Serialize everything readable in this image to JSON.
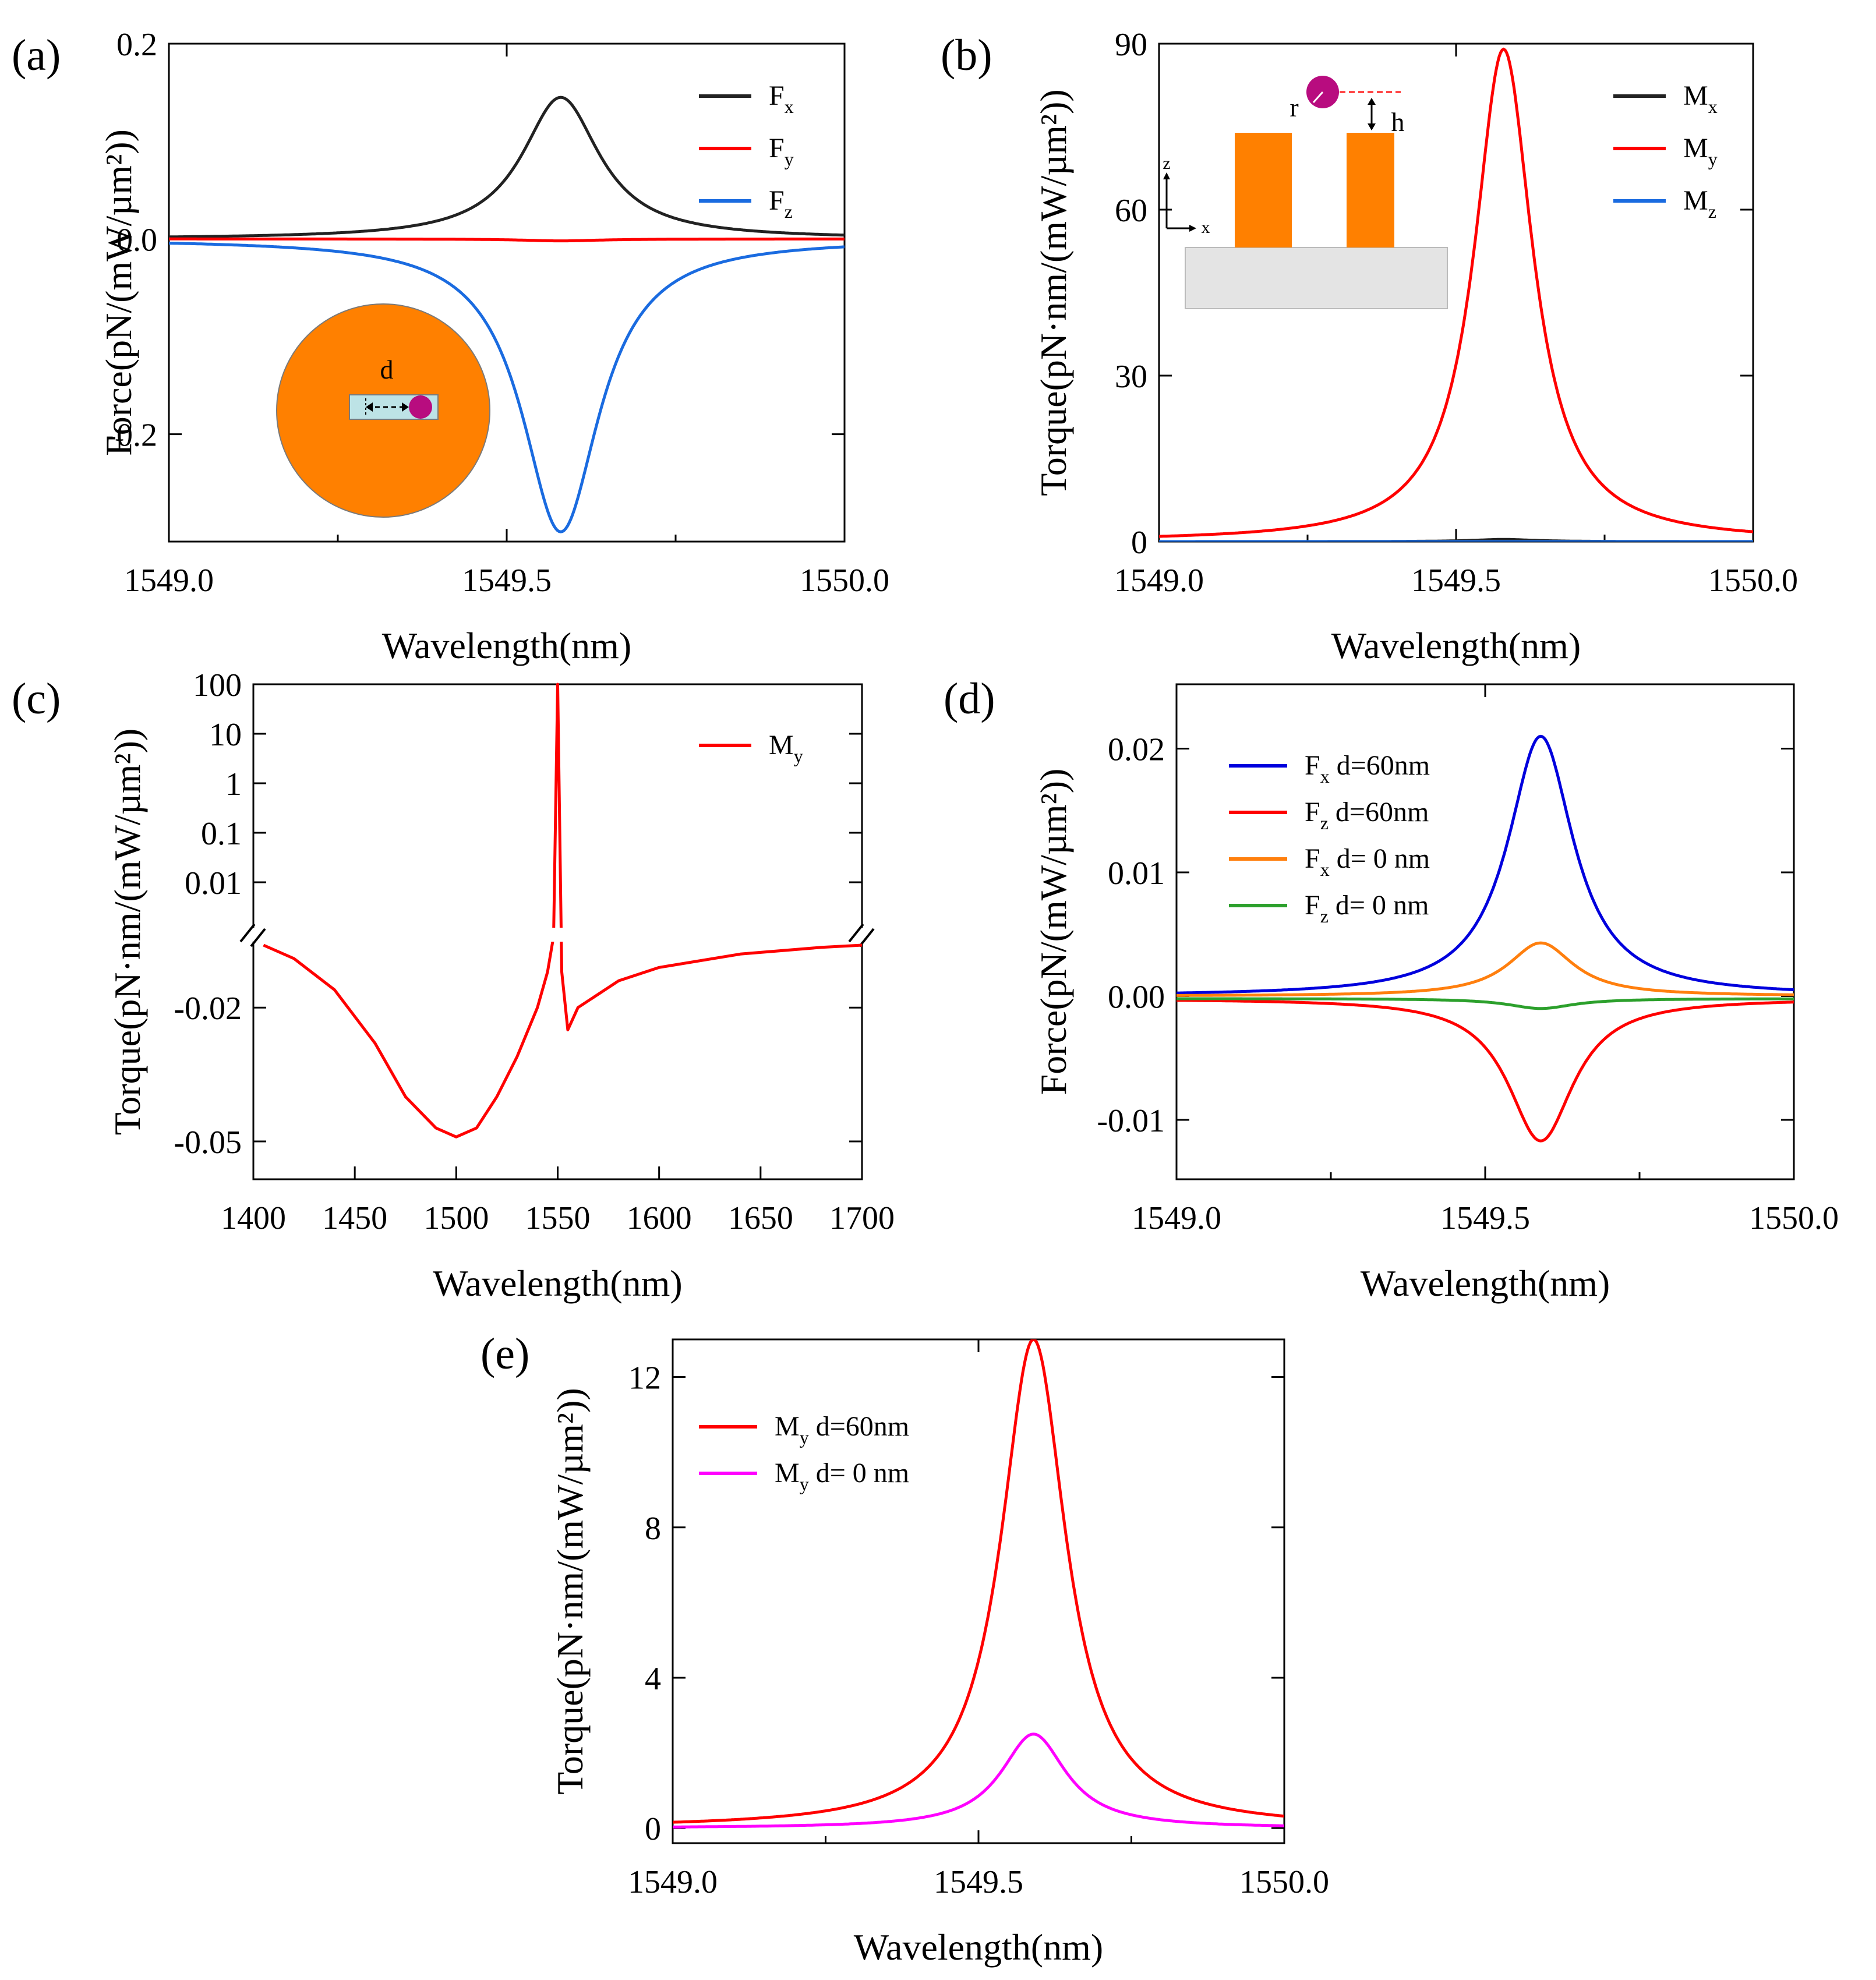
{
  "figure": {
    "panel_letters": [
      "(a)",
      "(b)",
      "(c)",
      "(d)",
      "(e)"
    ]
  },
  "chart_data": [
    {
      "id": "a",
      "type": "line",
      "panel_label": "(a)",
      "xlabel": "Wavelength(nm)",
      "ylabel": "Force(pN/(mW/µm²))",
      "xlim": [
        1549.0,
        1550.0
      ],
      "ylim": [
        -0.31,
        0.2
      ],
      "xticks": [
        1549.0,
        1549.5,
        1550.0
      ],
      "xtick_labels": [
        "1549.0",
        "1549.5",
        "1550.0"
      ],
      "yticks": [
        0.2,
        0.0,
        -0.2
      ],
      "ytick_labels": [
        "0.2",
        "0.0",
        "-0.2"
      ],
      "legend_position": "top-right",
      "series": [
        {
          "name": "Fx",
          "label": "F",
          "sub": "x",
          "color": "#222222",
          "shape": "lorentz",
          "x0": 1549.58,
          "gamma": 0.07,
          "amp": 0.145,
          "base": 0.0
        },
        {
          "name": "Fy",
          "label": "F",
          "sub": "y",
          "color": "#ff0000",
          "shape": "lorentz",
          "x0": 1549.58,
          "gamma": 0.07,
          "amp": -0.002,
          "base": 0.0
        },
        {
          "name": "Fz",
          "label": "F",
          "sub": "z",
          "color": "#1a6be0",
          "shape": "lorentz",
          "x0": 1549.58,
          "gamma": 0.07,
          "amp": -0.3,
          "base": 0.0
        }
      ],
      "inset": {
        "type": "disk-cross-section",
        "labels": [
          "d"
        ]
      }
    },
    {
      "id": "b",
      "type": "line",
      "panel_label": "(b)",
      "xlabel": "Wavelength(nm)",
      "ylabel": "Torque(pN·nm/(mW/µm²))",
      "xlim": [
        1549.0,
        1550.0
      ],
      "ylim": [
        0,
        90
      ],
      "xticks": [
        1549.0,
        1549.5,
        1550.0
      ],
      "xtick_labels": [
        "1549.0",
        "1549.5",
        "1550.0"
      ],
      "yticks": [
        0,
        30,
        60,
        90
      ],
      "ytick_labels": [
        "0",
        "30",
        "60",
        "90"
      ],
      "legend_position": "top-right",
      "series": [
        {
          "name": "Mx",
          "label": "M",
          "sub": "x",
          "color": "#222222",
          "shape": "lorentz",
          "x0": 1549.58,
          "gamma": 0.06,
          "amp": 0.4,
          "base": 0.0
        },
        {
          "name": "My",
          "label": "M",
          "sub": "y",
          "color": "#ff0000",
          "shape": "lorentz",
          "x0": 1549.58,
          "gamma": 0.06,
          "amp": 89,
          "base": 0.0
        },
        {
          "name": "Mz",
          "label": "M",
          "sub": "z",
          "color": "#1a6be0",
          "shape": "lorentz",
          "x0": 1549.58,
          "gamma": 0.06,
          "amp": 0.0,
          "base": 0.0
        }
      ],
      "inset": {
        "type": "side-view",
        "labels": [
          "r",
          "h",
          "z",
          "x"
        ]
      }
    },
    {
      "id": "c",
      "type": "line",
      "panel_label": "(c)",
      "xlabel": "Wavelength(nm)",
      "ylabel": "Torque(pN·nm/(mW/µm²))",
      "xlim": [
        1400,
        1700
      ],
      "xticks": [
        1400,
        1450,
        1500,
        1550,
        1600,
        1650,
        1700
      ],
      "xtick_labels": [
        "1400",
        "1450",
        "1500",
        "1550",
        "1600",
        "1650",
        "1700"
      ],
      "ytick_labels": [
        "100",
        "10",
        "1",
        "0.1",
        "0.01",
        "-0.02",
        "-0.05"
      ],
      "y_axis": "broken: log scale above, linear scale below",
      "legend_position": "top-right",
      "series": [
        {
          "name": "My",
          "label": "M",
          "sub": "y",
          "color": "#ff0000",
          "x": [
            1405,
            1420,
            1440,
            1460,
            1475,
            1490,
            1500,
            1510,
            1520,
            1530,
            1540,
            1545,
            1548,
            1550,
            1552,
            1555,
            1560,
            1580,
            1600,
            1640,
            1680,
            1700
          ],
          "y": [
            -0.006,
            -0.009,
            -0.016,
            -0.028,
            -0.04,
            -0.047,
            -0.049,
            -0.047,
            -0.04,
            -0.031,
            -0.02,
            -0.012,
            -0.004,
            100,
            -0.012,
            -0.025,
            -0.02,
            -0.014,
            -0.011,
            -0.008,
            -0.0065,
            -0.006
          ]
        }
      ]
    },
    {
      "id": "d",
      "type": "line",
      "panel_label": "(d)",
      "xlabel": "Wavelength(nm)",
      "ylabel": "Force(pN/(mW/µm²))",
      "xlim": [
        1549.0,
        1550.0
      ],
      "ylim": [
        -0.0148,
        0.0252
      ],
      "xticks": [
        1549.0,
        1549.5,
        1550.0
      ],
      "xtick_labels": [
        "1549.0",
        "1549.5",
        "1550.0"
      ],
      "yticks": [
        0.02,
        0.01,
        0.0,
        -0.01
      ],
      "ytick_labels": [
        "0.02",
        "0.01",
        "0.00",
        "-0.01"
      ],
      "legend_position": "top-left",
      "series": [
        {
          "name": "Fx d=60nm",
          "label": "F",
          "sub": "x",
          "suffix": " d=60nm",
          "color": "#0000dd",
          "shape": "lorentz",
          "x0": 1549.59,
          "gamma": 0.065,
          "amp": 0.021,
          "base": 0.0
        },
        {
          "name": "Fz d=60nm",
          "label": "F",
          "sub": "z",
          "suffix": " d=60nm",
          "color": "#ff0000",
          "shape": "lorentz",
          "x0": 1549.59,
          "gamma": 0.065,
          "amp": -0.0115,
          "base": -0.0002
        },
        {
          "name": "Fx d= 0 nm",
          "label": "F",
          "sub": "x",
          "suffix": " d= 0 nm",
          "color": "#ff7f0e",
          "shape": "lorentz",
          "x0": 1549.59,
          "gamma": 0.065,
          "amp": 0.0043,
          "base": 0.0
        },
        {
          "name": "Fz d= 0 nm",
          "label": "F",
          "sub": "z",
          "suffix": " d= 0 nm",
          "color": "#2ca02c",
          "shape": "lorentz",
          "x0": 1549.59,
          "gamma": 0.065,
          "amp": -0.0008,
          "base": -0.0002
        }
      ]
    },
    {
      "id": "e",
      "type": "line",
      "panel_label": "(e)",
      "xlabel": "Wavelength(nm)",
      "ylabel": "Torque(pN·nm/(mW/µm²))",
      "xlim": [
        1549.0,
        1550.0
      ],
      "ylim": [
        -0.4,
        13.0
      ],
      "xticks": [
        1549.0,
        1549.5,
        1550.0
      ],
      "xtick_labels": [
        "1549.0",
        "1549.5",
        "1550.0"
      ],
      "yticks": [
        0,
        4,
        8,
        12
      ],
      "ytick_labels": [
        "0",
        "4",
        "8",
        "12"
      ],
      "legend_position": "top-left",
      "series": [
        {
          "name": "My d=60nm",
          "label": "M",
          "sub": "y",
          "suffix": " d=60nm",
          "color": "#ff0000",
          "shape": "lorentz",
          "x0": 1549.59,
          "gamma": 0.065,
          "amp": 13.0,
          "base": 0.0
        },
        {
          "name": "My d= 0 nm",
          "label": "M",
          "sub": "y",
          "suffix": " d= 0 nm",
          "color": "#ff00ff",
          "shape": "lorentz",
          "x0": 1549.59,
          "gamma": 0.065,
          "amp": 2.5,
          "base": 0.0
        }
      ]
    }
  ]
}
